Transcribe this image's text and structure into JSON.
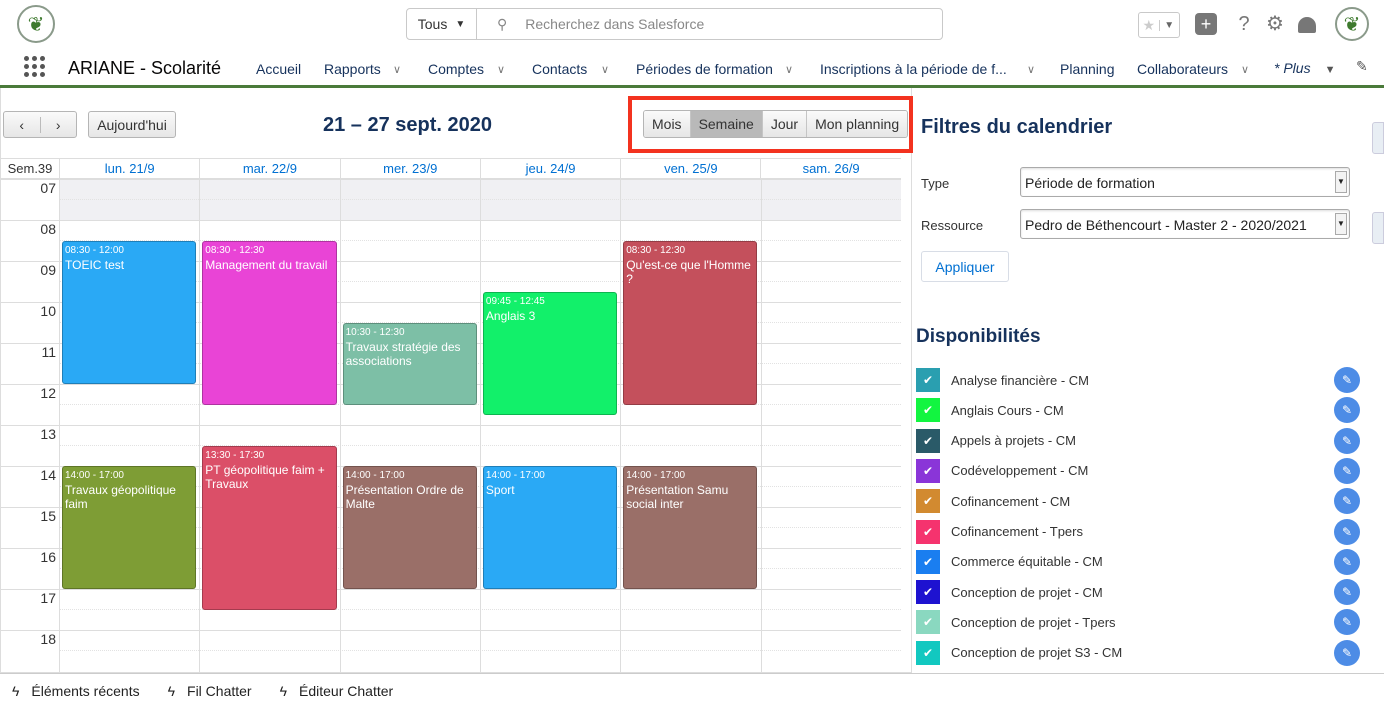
{
  "header": {
    "search_scope": "Tous",
    "search_placeholder": "Recherchez dans Salesforce"
  },
  "nav": {
    "app_name": "ARIANE - Scolarité",
    "items": [
      {
        "label": "Accueil",
        "dropdown": false
      },
      {
        "label": "Rapports",
        "dropdown": true
      },
      {
        "label": "Comptes",
        "dropdown": true
      },
      {
        "label": "Contacts",
        "dropdown": true
      },
      {
        "label": "Périodes de formation",
        "dropdown": true
      },
      {
        "label": "Inscriptions à la période de f...",
        "dropdown": true
      },
      {
        "label": "Planning",
        "dropdown": false
      },
      {
        "label": "Collaborateurs",
        "dropdown": true
      }
    ],
    "more_label": "* Plus"
  },
  "calendar": {
    "today_label": "Aujourd'hui",
    "title": "21 – 27 sept. 2020",
    "views": [
      "Mois",
      "Semaine",
      "Jour",
      "Mon planning"
    ],
    "active_view": "Semaine",
    "week_label": "Sem.39",
    "days": [
      "lun. 21/9",
      "mar. 22/9",
      "mer. 23/9",
      "jeu. 24/9",
      "ven. 25/9",
      "sam. 26/9"
    ],
    "hours": [
      "07",
      "08",
      "09",
      "10",
      "11",
      "12",
      "13",
      "14",
      "15",
      "16",
      "17",
      "18"
    ],
    "events": [
      {
        "day": 0,
        "start": "08:30",
        "end": "12:00",
        "time": "08:30 - 12:00",
        "title": "TOEIC test",
        "color": "#2aa9f5"
      },
      {
        "day": 1,
        "start": "08:30",
        "end": "12:30",
        "time": "08:30 - 12:30",
        "title": "Management du travail",
        "color": "#e944d6"
      },
      {
        "day": 2,
        "start": "10:30",
        "end": "12:30",
        "time": "10:30 - 12:30",
        "title": "Travaux stratégie des associations",
        "color": "#7dbfa6"
      },
      {
        "day": 3,
        "start": "09:45",
        "end": "12:45",
        "time": "09:45 - 12:45",
        "title": "Anglais 3",
        "color": "#12f06a"
      },
      {
        "day": 4,
        "start": "08:30",
        "end": "12:30",
        "time": "08:30 - 12:30",
        "title": "Qu'est-ce que l'Homme ?",
        "color": "#c4505c"
      },
      {
        "day": 0,
        "start": "14:00",
        "end": "17:00",
        "time": "14:00 - 17:00",
        "title": "Travaux géopolitique faim",
        "color": "#7e9d35"
      },
      {
        "day": 1,
        "start": "13:30",
        "end": "17:30",
        "time": "13:30 - 17:30",
        "title": "PT géopolitique faim + Travaux",
        "color": "#db4f68"
      },
      {
        "day": 2,
        "start": "14:00",
        "end": "17:00",
        "time": "14:00 - 17:00",
        "title": "Présentation Ordre de Malte",
        "color": "#9a6f68"
      },
      {
        "day": 3,
        "start": "14:00",
        "end": "17:00",
        "time": "14:00 - 17:00",
        "title": "Sport",
        "color": "#2aa9f5"
      },
      {
        "day": 4,
        "start": "14:00",
        "end": "17:00",
        "time": "14:00 - 17:00",
        "title": "Présentation Samu social inter",
        "color": "#9a6f68"
      }
    ]
  },
  "filters": {
    "title": "Filtres du calendrier",
    "type_label": "Type",
    "type_value": "Période de formation",
    "resource_label": "Ressource",
    "resource_value": "Pedro de Béthencourt - Master 2 - 2020/2021",
    "apply_label": "Appliquer"
  },
  "availability": {
    "title": "Disponibilités",
    "items": [
      {
        "label": "Analyse financière - CM",
        "color": "#2a9fb0",
        "checked": true
      },
      {
        "label": "Anglais Cours - CM",
        "color": "#12f540",
        "checked": true
      },
      {
        "label": "Appels à projets - CM",
        "color": "#2a5a68",
        "checked": true
      },
      {
        "label": "Codéveloppement - CM",
        "color": "#8a35d8",
        "checked": true
      },
      {
        "label": "Cofinancement - CM",
        "color": "#d28a30",
        "checked": true
      },
      {
        "label": "Cofinancement - Tpers",
        "color": "#f5336e",
        "checked": true
      },
      {
        "label": "Commerce équitable - CM",
        "color": "#1a7ef0",
        "checked": true
      },
      {
        "label": "Conception de projet - CM",
        "color": "#1e12d0",
        "checked": true
      },
      {
        "label": "Conception de projet - Tpers",
        "color": "#8ad8c0",
        "checked": true
      },
      {
        "label": "Conception de projet S3 - CM",
        "color": "#12c8c0",
        "checked": true
      }
    ]
  },
  "footer": [
    "Éléments récents",
    "Fil Chatter",
    "Éditeur Chatter"
  ]
}
